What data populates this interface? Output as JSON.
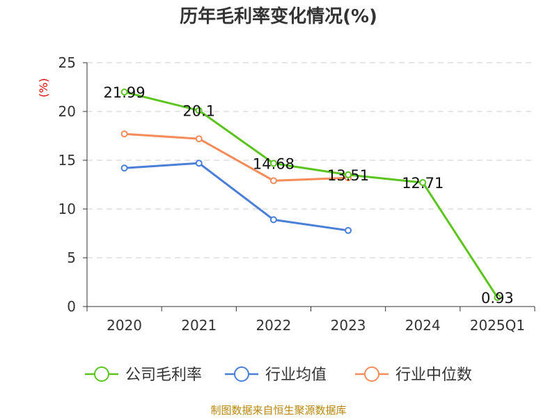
{
  "chart_data": {
    "type": "line",
    "title": "历年毛利率变化情况(%)",
    "ylabel": "(%)",
    "xlabel": "",
    "categories": [
      "2020",
      "2021",
      "2022",
      "2023",
      "2024",
      "2025Q1"
    ],
    "ylim": [
      0,
      25
    ],
    "yticks": [
      0,
      5,
      10,
      15,
      20,
      25
    ],
    "grid": true,
    "legend_position": "bottom",
    "series": [
      {
        "name": "公司毛利率",
        "color": "#5cc41f",
        "values": [
          21.99,
          20.1,
          14.68,
          13.51,
          12.71,
          0.93
        ],
        "labels": [
          "21.99",
          "20.1",
          "14.68",
          "13.51",
          "12.71",
          "0.93"
        ]
      },
      {
        "name": "行业均值",
        "color": "#4a7fd8",
        "values": [
          14.2,
          14.7,
          8.9,
          7.8,
          null,
          null
        ]
      },
      {
        "name": "行业中位数",
        "color": "#f58c5a",
        "values": [
          17.7,
          17.2,
          12.9,
          13.2,
          null,
          null
        ]
      }
    ],
    "source": "制图数据来自恒生聚源数据库"
  }
}
